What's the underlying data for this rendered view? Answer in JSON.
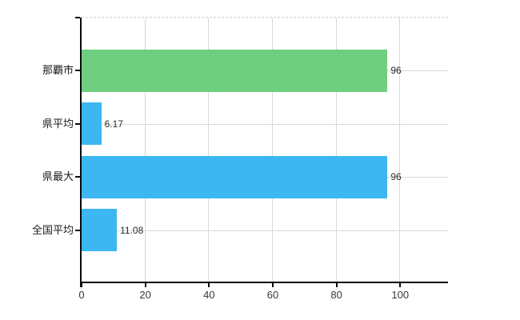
{
  "chart_data": {
    "type": "bar",
    "orientation": "horizontal",
    "title": "",
    "categories": [
      "那覇市",
      "県平均",
      "県最大",
      "全国平均"
    ],
    "values": [
      96,
      6.17,
      96,
      11.08
    ],
    "value_labels": [
      "96",
      "6.17",
      "96",
      "11.08"
    ],
    "series": [
      {
        "name": "value",
        "values": [
          96,
          6.17,
          96,
          11.08
        ]
      }
    ],
    "bar_colors": [
      "#6fcf81",
      "#3cb7f1",
      "#3cb7f1",
      "#3cb7f1"
    ],
    "x_ticks": [
      0,
      20,
      40,
      60,
      80,
      100
    ],
    "x_tick_labels": [
      "0",
      "20",
      "40",
      "60",
      "80",
      "100"
    ],
    "xlim": [
      0,
      115
    ],
    "grid": true,
    "grid_horizontal_at_category_centers": true,
    "top_boundary_style": "dashed",
    "legend": false
  },
  "colors": {
    "background": "#ffffff",
    "bar_green": "#6fcf81",
    "bar_blue": "#3cb7f1",
    "gridline": "#d5dad5",
    "top_border_dashed": "#d0d0d0",
    "axis": "#0a0a0a",
    "tick_label": "#383838",
    "category_label": "#1a1a1a",
    "value_label": "#2b2b2b"
  }
}
